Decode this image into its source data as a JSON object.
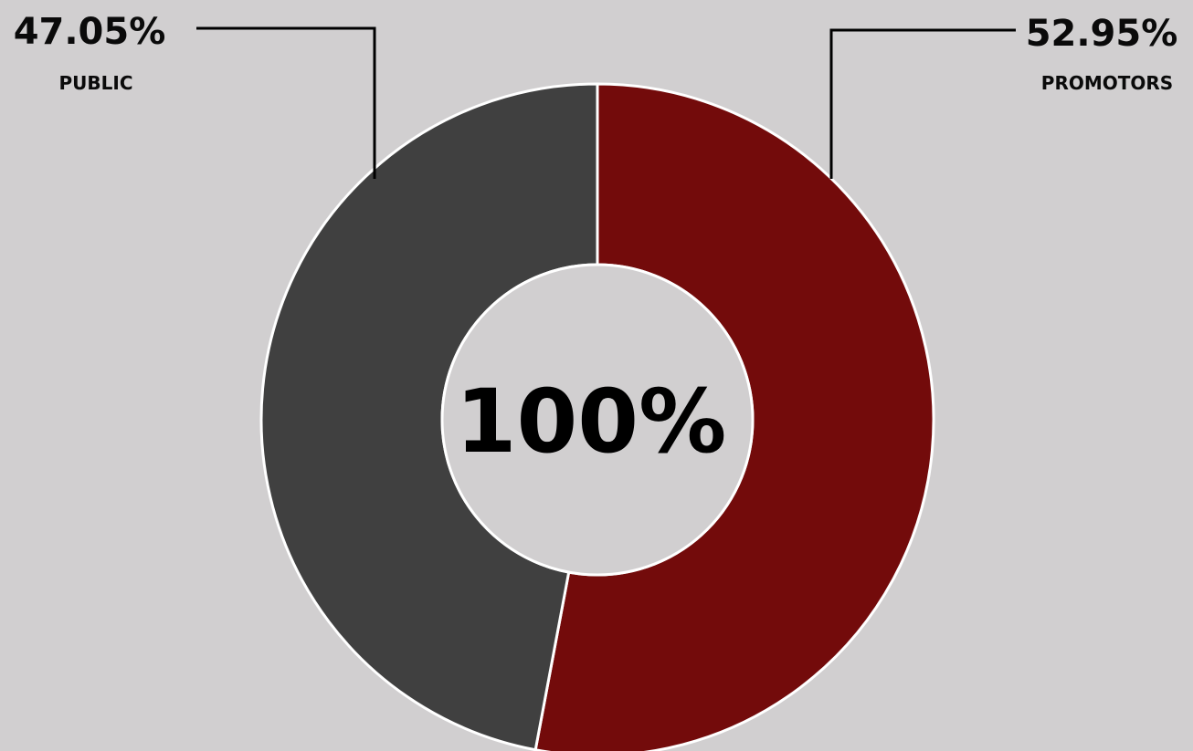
{
  "chart_data": {
    "type": "pie",
    "categories": [
      "PROMOTORS",
      "PUBLIC"
    ],
    "values": [
      52.95,
      47.05
    ],
    "value_labels": [
      "52.95%",
      "47.05%"
    ],
    "colors": [
      "#730b0b",
      "#404040"
    ],
    "center_text": "100%",
    "hole": "donut",
    "legend": "none"
  },
  "colors": {
    "background": "#d1cfd0",
    "slice_border": "#ffffff",
    "leader_line": "#000000"
  }
}
